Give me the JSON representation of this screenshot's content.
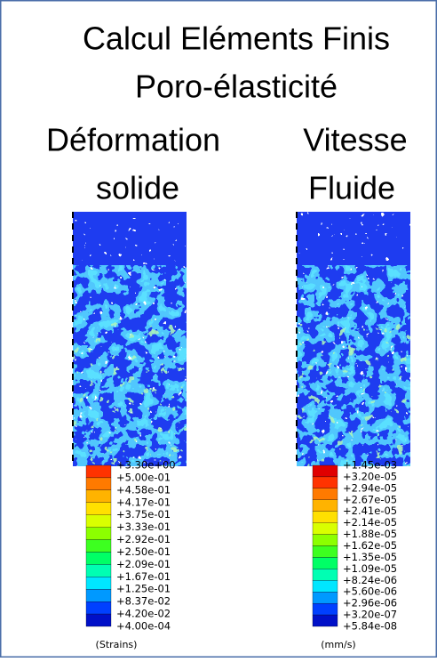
{
  "title": {
    "line1": "Calcul Eléments Finis",
    "line2": "Poro-élasticité"
  },
  "panels": [
    {
      "label": [
        "Déformation",
        "solide"
      ],
      "legend": [
        "+3.30e+00",
        "+5.00e-01",
        "+4.58e-01",
        "+4.17e-01",
        "+3.75e-01",
        "+3.33e-01",
        "+2.92e-01",
        "+2.50e-01",
        "+2.09e-01",
        "+1.67e-01",
        "+1.25e-01",
        "+8.37e-02",
        "+4.20e-02",
        "+4.00e-04"
      ],
      "unit": "(Strains)"
    },
    {
      "label": [
        "Vitesse",
        "Fluide"
      ],
      "legend": [
        "+1.45e-03",
        "+3.20e-05",
        "+2.94e-05",
        "+2.67e-05",
        "+2.41e-05",
        "+2.14e-05",
        "+1.88e-05",
        "+1.62e-05",
        "+1.35e-05",
        "+1.09e-05",
        "+8.24e-06",
        "+5.60e-06",
        "+2.96e-06",
        "+3.20e-07",
        "+5.84e-08"
      ],
      "unit": "(mm/s)"
    }
  ]
}
